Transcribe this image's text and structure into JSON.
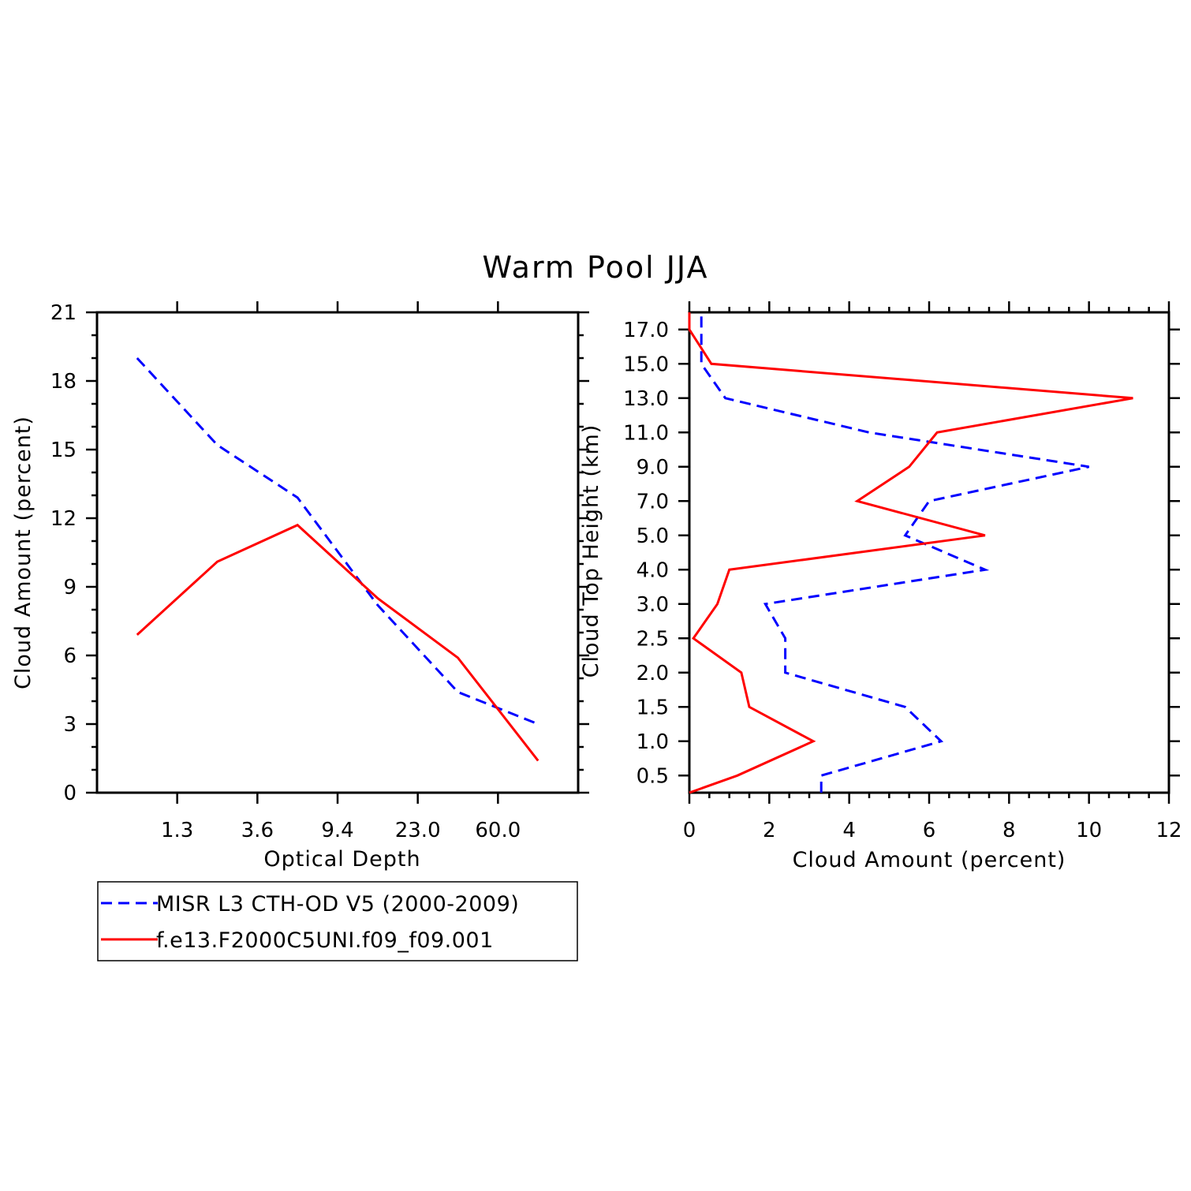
{
  "title": "Warm Pool JJA",
  "chart_data": [
    {
      "type": "line",
      "xlabel": "Optical Depth",
      "ylabel": "Cloud Amount (percent)",
      "x_scale": "categorical",
      "x_tick_labels": [
        "1.3",
        "3.6",
        "9.4",
        "23.0",
        "60.0"
      ],
      "y_tick_labels": [
        "0",
        "3",
        "6",
        "9",
        "12",
        "15",
        "18",
        "21"
      ],
      "ylim": [
        0,
        21
      ],
      "grid": false,
      "series": [
        {
          "name": "MISR L3 CTH-OD V5 (2000-2009)",
          "color": "#0000ff",
          "dash": "dashed",
          "x_index": [
            0.5,
            1.5,
            2.5,
            3.5,
            4.5,
            5.5
          ],
          "values": [
            19.0,
            15.2,
            12.9,
            8.2,
            4.4,
            3.0
          ]
        },
        {
          "name": "f.e13.F2000C5UNI.f09_f09.001",
          "color": "#ff0000",
          "dash": "solid",
          "x_index": [
            0.5,
            1.5,
            2.5,
            3.5,
            4.5,
            5.5
          ],
          "values": [
            6.9,
            10.1,
            11.7,
            8.5,
            5.9,
            1.4
          ]
        }
      ]
    },
    {
      "type": "line",
      "xlabel": "Cloud Amount (percent)",
      "ylabel": "Cloud Top Height (km)",
      "xlim": [
        0,
        12
      ],
      "x_tick_labels": [
        "0",
        "2",
        "4",
        "6",
        "8",
        "10",
        "12"
      ],
      "y_scale": "categorical",
      "y_tick_labels": [
        "0.5",
        "1.0",
        "1.5",
        "2.0",
        "2.5",
        "3.0",
        "4.0",
        "5.0",
        "7.0",
        "9.0",
        "11.0",
        "13.0",
        "15.0",
        "17.0"
      ],
      "grid": false,
      "series": [
        {
          "name": "MISR L3 CTH-OD V5 (2000-2009)",
          "color": "#0000ff",
          "dash": "dashed",
          "y_index": [
            0,
            0.5,
            1.5,
            2.5,
            3.5,
            4.5,
            5.5,
            6.5,
            7.5,
            8.5,
            9.5,
            10.5,
            11.5,
            12.5,
            13.5,
            14
          ],
          "values": [
            3.3,
            3.3,
            6.3,
            5.4,
            2.4,
            2.4,
            1.9,
            7.4,
            5.4,
            6.0,
            10.0,
            4.5,
            0.9,
            0.3,
            0.3,
            0.3
          ]
        },
        {
          "name": "f.e13.F2000C5UNI.f09_f09.001",
          "color": "#ff0000",
          "dash": "solid",
          "y_index": [
            0,
            0.5,
            1.5,
            2.5,
            3.5,
            4.5,
            5.5,
            6.5,
            7.5,
            8.5,
            9.5,
            10.5,
            11.5,
            12.5,
            13.5,
            14
          ],
          "values": [
            0.0,
            1.2,
            3.1,
            1.5,
            1.3,
            0.1,
            0.7,
            1.0,
            7.4,
            4.2,
            5.5,
            6.2,
            11.1,
            0.55,
            0.0,
            0.0
          ]
        }
      ]
    }
  ],
  "legend": {
    "entries": [
      {
        "label": "MISR L3 CTH-OD V5 (2000-2009)",
        "color": "#0000ff",
        "dash": "dashed"
      },
      {
        "label": "f.e13.F2000C5UNI.f09_f09.001",
        "color": "#ff0000",
        "dash": "solid"
      }
    ]
  }
}
